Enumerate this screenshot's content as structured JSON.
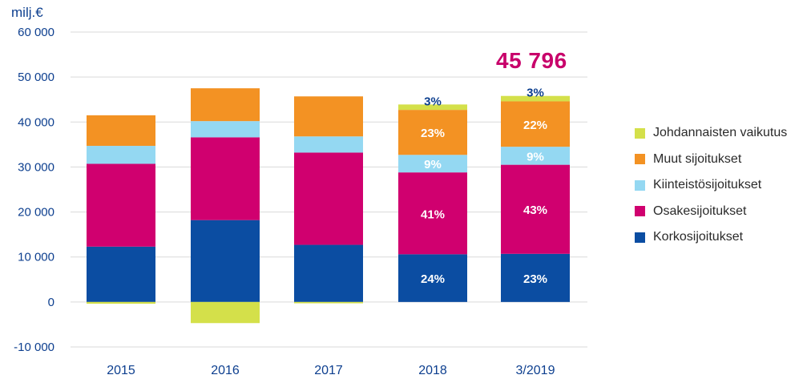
{
  "chart_data": {
    "type": "bar",
    "stacked": true,
    "unit_label": "milj.€",
    "total_annotation": "45 796",
    "categories": [
      "2015",
      "2016",
      "2017",
      "2018",
      "3/2019"
    ],
    "ylim": [
      -10000,
      60000
    ],
    "yticks": [
      -10000,
      0,
      10000,
      20000,
      30000,
      40000,
      50000,
      60000
    ],
    "ytick_labels": [
      "-10 000",
      "0",
      "10 000",
      "20 000",
      "30 000",
      "40 000",
      "50 000",
      "60 000"
    ],
    "grid": true,
    "legend_position": "right",
    "series": [
      {
        "name": "Korkosijoitukset",
        "color": "#0b4da2",
        "values": [
          12300,
          18200,
          12700,
          10600,
          10700
        ],
        "pct_labels": [
          "",
          "",
          "",
          "24%",
          "23%"
        ],
        "pct_color": "#ffffff"
      },
      {
        "name": "Osakesijoitukset",
        "color": "#d0006f",
        "values": [
          18400,
          18400,
          20500,
          18200,
          19800
        ],
        "pct_labels": [
          "",
          "",
          "",
          "41%",
          "43%"
        ],
        "pct_color": "#ffffff"
      },
      {
        "name": "Kiinteistösijoitukset",
        "color": "#94d8f2",
        "values": [
          4000,
          3600,
          3600,
          3900,
          4000
        ],
        "pct_labels": [
          "",
          "",
          "",
          "9%",
          "9%"
        ],
        "pct_color": "#ffffff"
      },
      {
        "name": "Muut sijoitukset",
        "color": "#f39223",
        "values": [
          6800,
          7300,
          8900,
          10000,
          10100
        ],
        "pct_labels": [
          "",
          "",
          "",
          "23%",
          "22%"
        ],
        "pct_color": "#ffffff"
      },
      {
        "name": "Johdannaisten vaikutus",
        "color": "#d4e04a",
        "values": [
          -400,
          -4700,
          -300,
          1200,
          1200
        ],
        "pct_labels": [
          "",
          "",
          "",
          "3%",
          "3%"
        ],
        "pct_color": "#0d3f8f"
      }
    ],
    "legend_order": [
      "Johdannaisten vaikutus",
      "Muut sijoitukset",
      "Kiinteistösijoitukset",
      "Osakesijoitukset",
      "Korkosijoitukset"
    ]
  }
}
